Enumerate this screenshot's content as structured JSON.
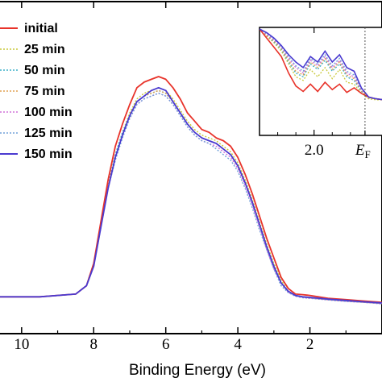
{
  "chart_data": {
    "type": "line",
    "xlabel": "Binding Energy (eV)",
    "x_reversed": true,
    "xlim": [
      10.6,
      0
    ],
    "ylim": [
      0,
      1
    ],
    "x_ticks": [
      {
        "value": 10,
        "label": "10"
      },
      {
        "value": 8,
        "label": "8"
      },
      {
        "value": 6,
        "label": "6"
      },
      {
        "value": 4,
        "label": "4"
      },
      {
        "value": 2,
        "label": "2"
      }
    ],
    "legend_position": "top-left",
    "grid": false,
    "series": [
      {
        "name": "initial",
        "color": "#e8332a",
        "dash": "solid",
        "x": [
          10.6,
          9.5,
          8.5,
          8.2,
          8.0,
          7.8,
          7.6,
          7.4,
          7.2,
          7.0,
          6.8,
          6.6,
          6.4,
          6.2,
          6.0,
          5.8,
          5.6,
          5.4,
          5.2,
          5.0,
          4.8,
          4.6,
          4.4,
          4.2,
          4.0,
          3.8,
          3.6,
          3.4,
          3.2,
          3.0,
          2.8,
          2.6,
          2.4,
          2.2,
          2.0,
          1.5,
          1.0,
          0.5,
          0.0
        ],
        "y": [
          0.08,
          0.08,
          0.09,
          0.12,
          0.2,
          0.35,
          0.5,
          0.62,
          0.7,
          0.77,
          0.83,
          0.85,
          0.86,
          0.87,
          0.86,
          0.83,
          0.79,
          0.74,
          0.71,
          0.68,
          0.67,
          0.65,
          0.64,
          0.62,
          0.58,
          0.52,
          0.45,
          0.37,
          0.29,
          0.22,
          0.15,
          0.11,
          0.09,
          0.088,
          0.085,
          0.075,
          0.07,
          0.065,
          0.06
        ]
      },
      {
        "name": "25 min",
        "color": "#c9c93a",
        "dash": "dotted",
        "x": [
          10.6,
          9.5,
          8.5,
          8.2,
          8.0,
          7.8,
          7.6,
          7.4,
          7.2,
          7.0,
          6.8,
          6.6,
          6.4,
          6.2,
          6.0,
          5.8,
          5.6,
          5.4,
          5.2,
          5.0,
          4.8,
          4.6,
          4.4,
          4.2,
          4.0,
          3.8,
          3.6,
          3.4,
          3.2,
          3.0,
          2.8,
          2.6,
          2.4,
          2.2,
          2.0,
          1.5,
          1.0,
          0.5,
          0.0
        ],
        "y": [
          0.08,
          0.08,
          0.09,
          0.12,
          0.2,
          0.34,
          0.48,
          0.59,
          0.67,
          0.74,
          0.79,
          0.81,
          0.82,
          0.83,
          0.82,
          0.79,
          0.75,
          0.71,
          0.68,
          0.66,
          0.65,
          0.64,
          0.62,
          0.6,
          0.56,
          0.5,
          0.43,
          0.35,
          0.27,
          0.2,
          0.14,
          0.1,
          0.085,
          0.08,
          0.078,
          0.072,
          0.067,
          0.062,
          0.058
        ]
      },
      {
        "name": "50 min",
        "color": "#3cb0c8",
        "dash": "dotted",
        "x": [
          10.6,
          9.5,
          8.5,
          8.2,
          8.0,
          7.8,
          7.6,
          7.4,
          7.2,
          7.0,
          6.8,
          6.6,
          6.4,
          6.2,
          6.0,
          5.8,
          5.6,
          5.4,
          5.2,
          5.0,
          4.8,
          4.6,
          4.4,
          4.2,
          4.0,
          3.8,
          3.6,
          3.4,
          3.2,
          3.0,
          2.8,
          2.6,
          2.4,
          2.2,
          2.0,
          1.5,
          1.0,
          0.5,
          0.0
        ],
        "y": [
          0.08,
          0.08,
          0.09,
          0.12,
          0.2,
          0.34,
          0.48,
          0.59,
          0.67,
          0.73,
          0.78,
          0.8,
          0.81,
          0.82,
          0.81,
          0.78,
          0.74,
          0.7,
          0.67,
          0.65,
          0.64,
          0.63,
          0.61,
          0.59,
          0.55,
          0.49,
          0.42,
          0.34,
          0.26,
          0.19,
          0.13,
          0.1,
          0.085,
          0.08,
          0.077,
          0.071,
          0.066,
          0.061,
          0.057
        ]
      },
      {
        "name": "75 min",
        "color": "#e0a050",
        "dash": "dotted",
        "x": [
          10.6,
          9.5,
          8.5,
          8.2,
          8.0,
          7.8,
          7.6,
          7.4,
          7.2,
          7.0,
          6.8,
          6.6,
          6.4,
          6.2,
          6.0,
          5.8,
          5.6,
          5.4,
          5.2,
          5.0,
          4.8,
          4.6,
          4.4,
          4.2,
          4.0,
          3.8,
          3.6,
          3.4,
          3.2,
          3.0,
          2.8,
          2.6,
          2.4,
          2.2,
          2.0,
          1.5,
          1.0,
          0.5,
          0.0
        ],
        "y": [
          0.08,
          0.08,
          0.09,
          0.12,
          0.2,
          0.34,
          0.48,
          0.58,
          0.66,
          0.73,
          0.78,
          0.8,
          0.81,
          0.82,
          0.81,
          0.78,
          0.74,
          0.7,
          0.67,
          0.65,
          0.64,
          0.63,
          0.61,
          0.59,
          0.55,
          0.49,
          0.42,
          0.34,
          0.26,
          0.19,
          0.13,
          0.1,
          0.084,
          0.079,
          0.076,
          0.07,
          0.065,
          0.06,
          0.056
        ]
      },
      {
        "name": "100 min",
        "color": "#d070d8",
        "dash": "dotted",
        "x": [
          10.6,
          9.5,
          8.5,
          8.2,
          8.0,
          7.8,
          7.6,
          7.4,
          7.2,
          7.0,
          6.8,
          6.6,
          6.4,
          6.2,
          6.0,
          5.8,
          5.6,
          5.4,
          5.2,
          5.0,
          4.8,
          4.6,
          4.4,
          4.2,
          4.0,
          3.8,
          3.6,
          3.4,
          3.2,
          3.0,
          2.8,
          2.6,
          2.4,
          2.2,
          2.0,
          1.5,
          1.0,
          0.5,
          0.0
        ],
        "y": [
          0.08,
          0.08,
          0.09,
          0.12,
          0.19,
          0.33,
          0.47,
          0.58,
          0.66,
          0.72,
          0.77,
          0.79,
          0.8,
          0.81,
          0.8,
          0.77,
          0.73,
          0.69,
          0.66,
          0.64,
          0.63,
          0.62,
          0.6,
          0.58,
          0.54,
          0.48,
          0.41,
          0.33,
          0.25,
          0.18,
          0.13,
          0.095,
          0.083,
          0.078,
          0.075,
          0.069,
          0.064,
          0.06,
          0.055
        ]
      },
      {
        "name": "125 min",
        "color": "#70a0d8",
        "dash": "dotted",
        "x": [
          10.6,
          9.5,
          8.5,
          8.2,
          8.0,
          7.8,
          7.6,
          7.4,
          7.2,
          7.0,
          6.8,
          6.6,
          6.4,
          6.2,
          6.0,
          5.8,
          5.6,
          5.4,
          5.2,
          5.0,
          4.8,
          4.6,
          4.4,
          4.2,
          4.0,
          3.8,
          3.6,
          3.4,
          3.2,
          3.0,
          2.8,
          2.6,
          2.4,
          2.2,
          2.0,
          1.5,
          1.0,
          0.5,
          0.0
        ],
        "y": [
          0.08,
          0.08,
          0.09,
          0.12,
          0.19,
          0.33,
          0.47,
          0.57,
          0.65,
          0.72,
          0.77,
          0.79,
          0.8,
          0.81,
          0.8,
          0.77,
          0.73,
          0.69,
          0.66,
          0.64,
          0.63,
          0.61,
          0.59,
          0.57,
          0.53,
          0.47,
          0.4,
          0.32,
          0.25,
          0.18,
          0.12,
          0.095,
          0.082,
          0.077,
          0.075,
          0.069,
          0.064,
          0.06,
          0.055
        ]
      },
      {
        "name": "150 min",
        "color": "#4a3ad0",
        "dash": "solid",
        "x": [
          10.6,
          9.5,
          8.5,
          8.2,
          8.0,
          7.8,
          7.6,
          7.4,
          7.2,
          7.0,
          6.8,
          6.6,
          6.4,
          6.2,
          6.0,
          5.8,
          5.6,
          5.4,
          5.2,
          5.0,
          4.8,
          4.6,
          4.4,
          4.2,
          4.0,
          3.8,
          3.6,
          3.4,
          3.2,
          3.0,
          2.8,
          2.6,
          2.4,
          2.2,
          2.0,
          1.5,
          1.0,
          0.5,
          0.0
        ],
        "y": [
          0.08,
          0.08,
          0.09,
          0.12,
          0.19,
          0.33,
          0.47,
          0.58,
          0.66,
          0.73,
          0.78,
          0.8,
          0.82,
          0.83,
          0.82,
          0.78,
          0.74,
          0.7,
          0.67,
          0.65,
          0.64,
          0.63,
          0.61,
          0.59,
          0.55,
          0.49,
          0.42,
          0.34,
          0.26,
          0.19,
          0.13,
          0.1,
          0.085,
          0.08,
          0.078,
          0.072,
          0.067,
          0.062,
          0.058
        ]
      }
    ],
    "inset": {
      "xlim": [
        2.3,
        1.6
      ],
      "x_ticks": [
        {
          "value": 2.0,
          "label": "2.0"
        }
      ],
      "fermi_label": "E",
      "fermi_subscript": "F",
      "fermi_position": 1.72,
      "series": [
        {
          "name": "initial",
          "color": "#e8332a",
          "dash": "solid",
          "x": [
            2.3,
            2.26,
            2.22,
            2.18,
            2.14,
            2.1,
            2.06,
            2.02,
            1.98,
            1.94,
            1.9,
            1.86,
            1.82,
            1.78,
            1.74,
            1.7,
            1.66,
            1.62
          ],
          "y": [
            1.0,
            0.9,
            0.8,
            0.7,
            0.52,
            0.38,
            0.32,
            0.4,
            0.32,
            0.42,
            0.34,
            0.4,
            0.31,
            0.36,
            0.3,
            0.26,
            0.24,
            0.23
          ]
        },
        {
          "name": "25 min",
          "color": "#c9c93a",
          "dash": "dotted",
          "x": [
            2.3,
            2.26,
            2.22,
            2.18,
            2.14,
            2.1,
            2.06,
            2.02,
            1.98,
            1.94,
            1.9,
            1.86,
            1.82,
            1.78,
            1.74,
            1.7,
            1.66,
            1.62
          ],
          "y": [
            1.0,
            0.92,
            0.85,
            0.76,
            0.62,
            0.48,
            0.44,
            0.56,
            0.48,
            0.58,
            0.46,
            0.56,
            0.42,
            0.4,
            0.3,
            0.24,
            0.23,
            0.23
          ]
        },
        {
          "name": "50 min",
          "color": "#3cb0c8",
          "dash": "dotted",
          "x": [
            2.3,
            2.26,
            2.22,
            2.18,
            2.14,
            2.1,
            2.06,
            2.02,
            1.98,
            1.94,
            1.9,
            1.86,
            1.82,
            1.78,
            1.74,
            1.7,
            1.66,
            1.62
          ],
          "y": [
            1.0,
            0.93,
            0.86,
            0.78,
            0.64,
            0.52,
            0.48,
            0.62,
            0.56,
            0.66,
            0.54,
            0.62,
            0.48,
            0.44,
            0.32,
            0.25,
            0.24,
            0.23
          ]
        },
        {
          "name": "75 min",
          "color": "#e0a050",
          "dash": "dotted",
          "x": [
            2.3,
            2.26,
            2.22,
            2.18,
            2.14,
            2.1,
            2.06,
            2.02,
            1.98,
            1.94,
            1.9,
            1.86,
            1.82,
            1.78,
            1.74,
            1.7,
            1.66,
            1.62
          ],
          "y": [
            1.0,
            0.93,
            0.87,
            0.79,
            0.66,
            0.54,
            0.5,
            0.64,
            0.58,
            0.68,
            0.56,
            0.64,
            0.5,
            0.46,
            0.33,
            0.25,
            0.24,
            0.23
          ]
        },
        {
          "name": "100 min",
          "color": "#d070d8",
          "dash": "dotted",
          "x": [
            2.3,
            2.26,
            2.22,
            2.18,
            2.14,
            2.1,
            2.06,
            2.02,
            1.98,
            1.94,
            1.9,
            1.86,
            1.82,
            1.78,
            1.74,
            1.7,
            1.66,
            1.62
          ],
          "y": [
            1.0,
            0.94,
            0.88,
            0.8,
            0.68,
            0.58,
            0.52,
            0.66,
            0.6,
            0.7,
            0.58,
            0.66,
            0.52,
            0.48,
            0.34,
            0.26,
            0.24,
            0.23
          ]
        },
        {
          "name": "125 min",
          "color": "#70a0d8",
          "dash": "dotted",
          "x": [
            2.3,
            2.26,
            2.22,
            2.18,
            2.14,
            2.1,
            2.06,
            2.02,
            1.98,
            1.94,
            1.9,
            1.86,
            1.82,
            1.78,
            1.74,
            1.7,
            1.66,
            1.62
          ],
          "y": [
            1.0,
            0.95,
            0.89,
            0.81,
            0.7,
            0.6,
            0.54,
            0.68,
            0.62,
            0.72,
            0.6,
            0.68,
            0.54,
            0.5,
            0.35,
            0.26,
            0.24,
            0.23
          ]
        },
        {
          "name": "150 min",
          "color": "#4a3ad0",
          "dash": "solid",
          "x": [
            2.3,
            2.26,
            2.22,
            2.18,
            2.14,
            2.1,
            2.06,
            2.02,
            1.98,
            1.94,
            1.9,
            1.86,
            1.82,
            1.78,
            1.74,
            1.7,
            1.66,
            1.62
          ],
          "y": [
            1.0,
            0.96,
            0.9,
            0.82,
            0.72,
            0.64,
            0.58,
            0.7,
            0.64,
            0.76,
            0.64,
            0.72,
            0.58,
            0.54,
            0.36,
            0.26,
            0.24,
            0.23
          ]
        }
      ]
    }
  }
}
